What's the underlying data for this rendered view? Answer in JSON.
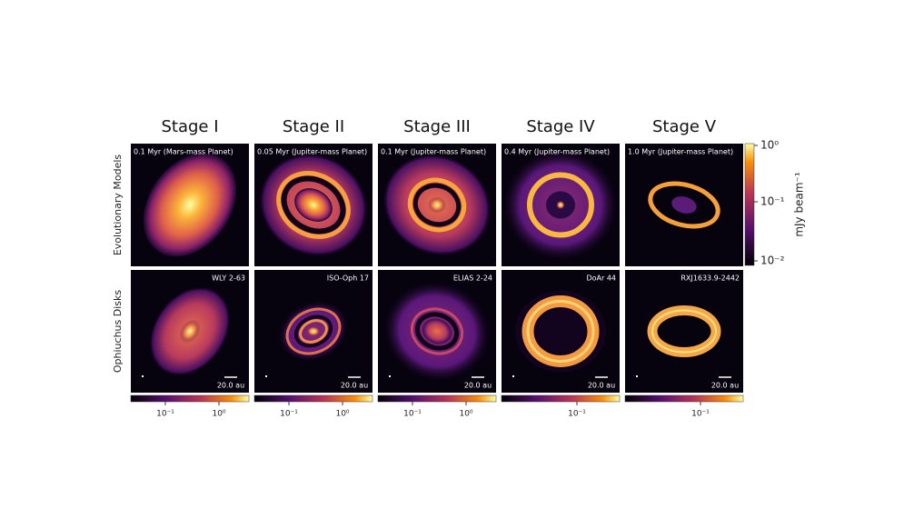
{
  "columns": [
    "Stage I",
    "Stage II",
    "Stage III",
    "Stage IV",
    "Stage V"
  ],
  "rows": [
    "Evolutionary Models",
    "Ophiuchus Disks"
  ],
  "model_panels": [
    "0.1 Myr (Mars-mass Planet)",
    "0.05 Myr (Jupiter-mass Planet)",
    "0.1 Myr (Jupiter-mass Planet)",
    "0.4 Myr (Jupiter-mass Planet)",
    "1.0 Myr (Jupiter-mass Planet)"
  ],
  "disk_panels": [
    "WLY 2-63",
    "ISO-Oph 17",
    "ELIAS 2-24",
    "DoAr 44",
    "RXJ1633.9-2442"
  ],
  "scale_bars": [
    "20.0 au",
    "20.0 au",
    "20.0 au",
    "20.0 au",
    "20.0 au"
  ],
  "colorbar": {
    "label": "mJy beam⁻¹",
    "ticks": [
      "10⁰",
      "10⁻¹",
      "10⁻²"
    ]
  },
  "disk_colorbar_ticks": [
    [
      "10⁻¹",
      "10⁰"
    ],
    [
      "10⁻¹",
      "10⁰"
    ],
    [
      "10⁻¹",
      "10⁰"
    ],
    [
      "10⁻¹"
    ],
    [
      "10⁻¹"
    ]
  ]
}
